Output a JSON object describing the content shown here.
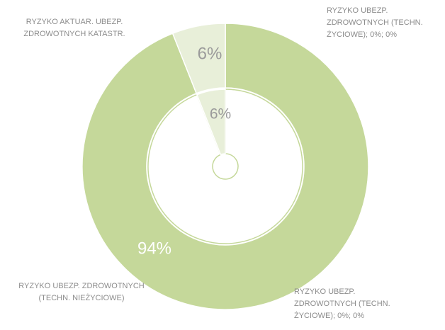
{
  "chart_data": {
    "type": "donut",
    "categories": [
      "RYZYKO UBEZP. ZDROWOTNYCH (TECHN. NIEŻYCIOWE)",
      "RYZYKO UBEZP. ZDROWOTNYCH (TECHN. ŻYCIOWE); 0%; 0%",
      "RYZYKO AKTUAR. UBEZP. ZDROWOTNYCH KATASTR."
    ],
    "colors": [
      "#c5d89a",
      "#d9e6bd",
      "#e8efd9"
    ],
    "series": [
      {
        "values": [
          94,
          0,
          6
        ],
        "value_labels": [
          "94%",
          null,
          "6%"
        ]
      },
      {
        "values": [
          94,
          0,
          6
        ],
        "value_labels": [
          "94%",
          null,
          "6%"
        ]
      }
    ]
  }
}
